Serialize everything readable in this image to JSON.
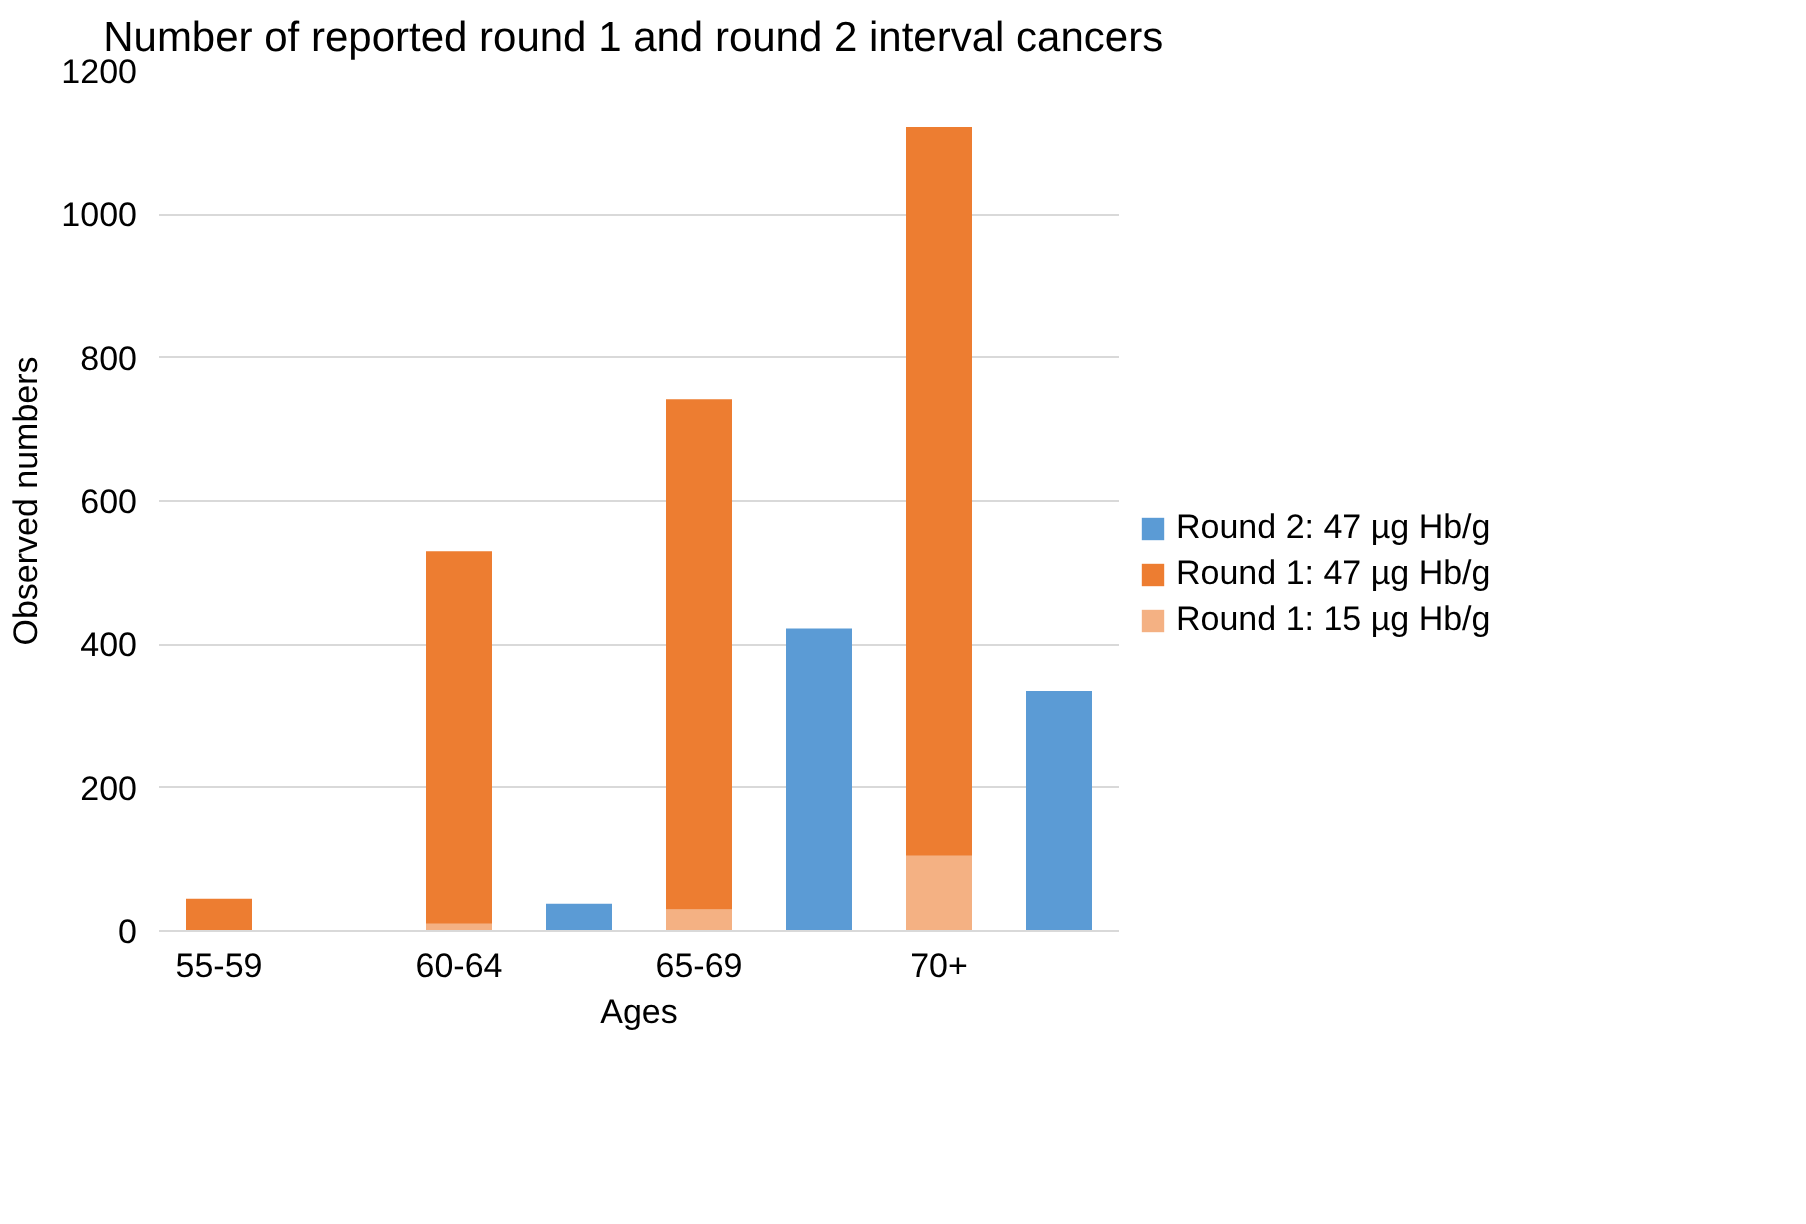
{
  "chart_data": {
    "type": "bar",
    "title": "Number of reported round 1 and round 2  interval cancers",
    "xlabel": "Ages",
    "ylabel": "Observed numbers",
    "categories": [
      "55-59",
      null,
      "60-64",
      null,
      "65-69",
      null,
      "70+",
      null
    ],
    "stacked": true,
    "series": [
      {
        "name": "Round 1: 15 µg Hb/g",
        "color": "#f4b183",
        "values": [
          null,
          null,
          10,
          null,
          30,
          null,
          105,
          null
        ]
      },
      {
        "name": "Round 1: 47 µg Hb/g",
        "color": "#ed7d31",
        "values": [
          45,
          null,
          520,
          null,
          712,
          null,
          1017,
          null
        ]
      },
      {
        "name": "Round 2: 47 µg Hb/g",
        "color": "#5b9bd5",
        "values": [
          null,
          0,
          null,
          38,
          null,
          422,
          null,
          335
        ]
      }
    ],
    "ylim": [
      0,
      1200
    ],
    "yticks": [
      0,
      200,
      400,
      600,
      800,
      1000,
      1200
    ],
    "grid": "y",
    "legend": "right"
  }
}
